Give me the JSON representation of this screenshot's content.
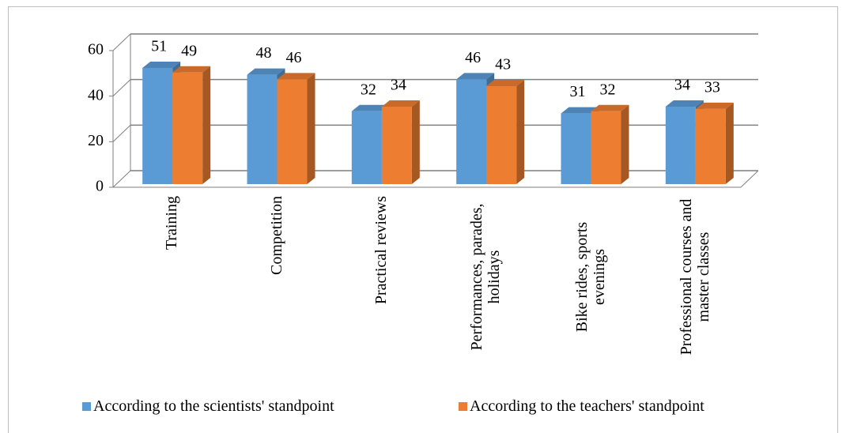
{
  "chart_data": {
    "type": "bar3d",
    "categories": [
      "Training",
      "Competition",
      "Practical reviews",
      "Performances, parades, holidays",
      "Bike rides, sports evenings",
      "Professional courses and master classes"
    ],
    "series": [
      {
        "name": "According to the scientists' standpoint",
        "color": "#5b9bd5",
        "values": [
          51,
          48,
          32,
          46,
          31,
          34
        ]
      },
      {
        "name": "According to the teachers' standpoint",
        "color": "#ed7d31",
        "values": [
          49,
          46,
          34,
          43,
          32,
          33
        ]
      }
    ],
    "ylim": [
      0,
      60
    ],
    "yticks": [
      0,
      20,
      40,
      60
    ],
    "grid": true,
    "legend": "bottom"
  }
}
